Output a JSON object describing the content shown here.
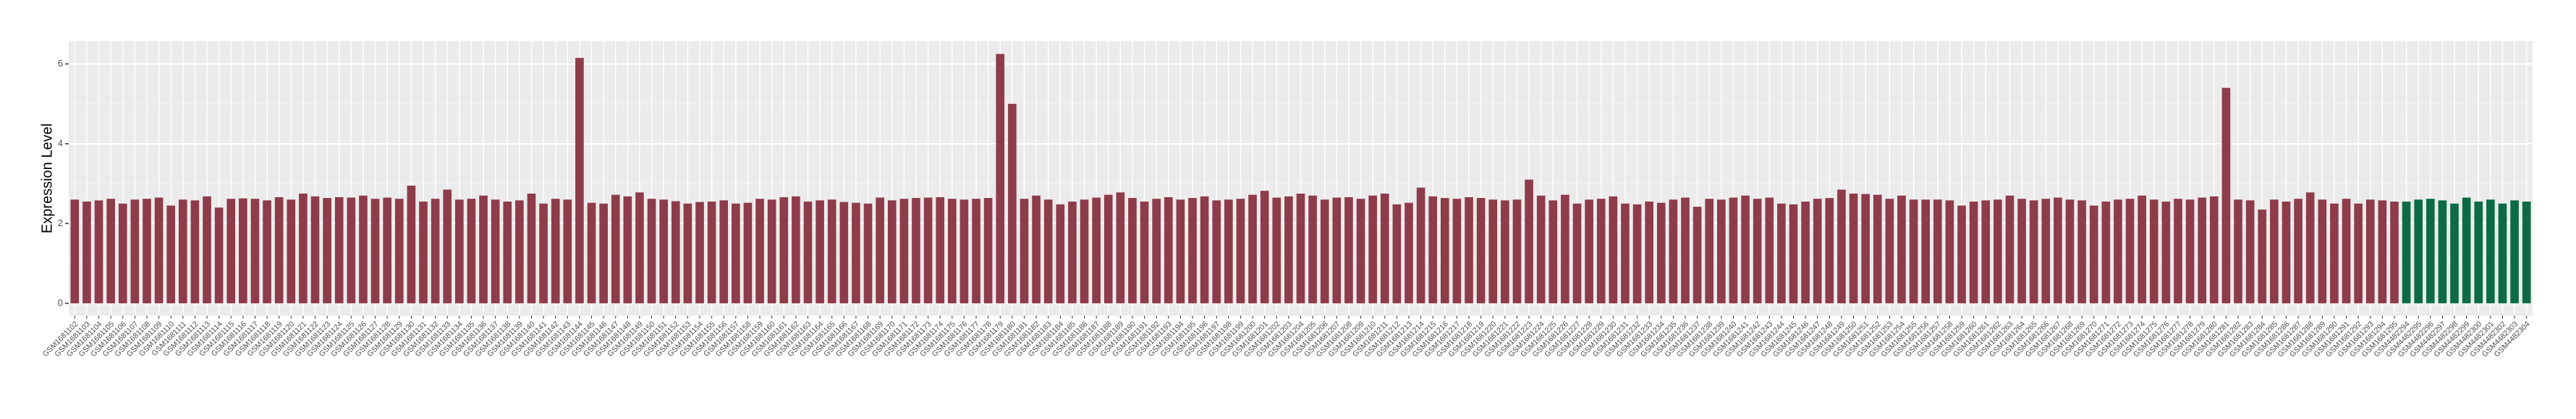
{
  "chart_data": {
    "type": "bar",
    "y_label": "Expression Level",
    "categories": [
      "GSM1681102",
      "GSM1681103",
      "GSM1681104",
      "GSM1681105",
      "GSM1681106",
      "GSM1681107",
      "GSM1681108",
      "GSM1681109",
      "GSM1681110",
      "GSM1681111",
      "GSM1681112",
      "GSM1681113",
      "GSM1681114",
      "GSM1681115",
      "GSM1681116",
      "GSM1681117",
      "GSM1681118",
      "GSM1681119",
      "GSM1681120",
      "GSM1681121",
      "GSM1681122",
      "GSM1681123",
      "GSM1681124",
      "GSM1681125",
      "GSM1681126",
      "GSM1681127",
      "GSM1681128",
      "GSM1681129",
      "GSM1681130",
      "GSM1681131",
      "GSM1681132",
      "GSM1681133",
      "GSM1681134",
      "GSM1681135",
      "GSM1681136",
      "GSM1681137",
      "GSM1681138",
      "GSM1681139",
      "GSM1681140",
      "GSM1681141",
      "GSM1681142",
      "GSM1681143",
      "GSM1681144",
      "GSM1681145",
      "GSM1681146",
      "GSM1681147",
      "GSM1681148",
      "GSM1681149",
      "GSM1681150",
      "GSM1681151",
      "GSM1681152",
      "GSM1681153",
      "GSM1681154",
      "GSM1681155",
      "GSM1681156",
      "GSM1681157",
      "GSM1681158",
      "GSM1681159",
      "GSM1681160",
      "GSM1681161",
      "GSM1681162",
      "GSM1681163",
      "GSM1681164",
      "GSM1681165",
      "GSM1681166",
      "GSM1681167",
      "GSM1681168",
      "GSM1681169",
      "GSM1681170",
      "GSM1681171",
      "GSM1681172",
      "GSM1681173",
      "GSM1681174",
      "GSM1681175",
      "GSM1681176",
      "GSM1681177",
      "GSM1681178",
      "GSM1681179",
      "GSM1681180",
      "GSM1681181",
      "GSM1681182",
      "GSM1681183",
      "GSM1681184",
      "GSM1681185",
      "GSM1681186",
      "GSM1681187",
      "GSM1681188",
      "GSM1681189",
      "GSM1681190",
      "GSM1681191",
      "GSM1681192",
      "GSM1681193",
      "GSM1681194",
      "GSM1681195",
      "GSM1681196",
      "GSM1681197",
      "GSM1681198",
      "GSM1681199",
      "GSM1681200",
      "GSM1681201",
      "GSM1681202",
      "GSM1681203",
      "GSM1681204",
      "GSM1681205",
      "GSM1681206",
      "GSM1681207",
      "GSM1681208",
      "GSM1681209",
      "GSM1681210",
      "GSM1681211",
      "GSM1681212",
      "GSM1681213",
      "GSM1681214",
      "GSM1681215",
      "GSM1681216",
      "GSM1681217",
      "GSM1681218",
      "GSM1681219",
      "GSM1681220",
      "GSM1681221",
      "GSM1681222",
      "GSM1681223",
      "GSM1681224",
      "GSM1681225",
      "GSM1681226",
      "GSM1681227",
      "GSM1681228",
      "GSM1681229",
      "GSM1681230",
      "GSM1681231",
      "GSM1681232",
      "GSM1681233",
      "GSM1681234",
      "GSM1681235",
      "GSM1681236",
      "GSM1681237",
      "GSM1681238",
      "GSM1681239",
      "GSM1681240",
      "GSM1681241",
      "GSM1681242",
      "GSM1681243",
      "GSM1681244",
      "GSM1681245",
      "GSM1681246",
      "GSM1681247",
      "GSM1681248",
      "GSM1681249",
      "GSM1681250",
      "GSM1681251",
      "GSM1681252",
      "GSM1681253",
      "GSM1681254",
      "GSM1681255",
      "GSM1681256",
      "GSM1681257",
      "GSM1681258",
      "GSM1681259",
      "GSM1681260",
      "GSM1681261",
      "GSM1681262",
      "GSM1681263",
      "GSM1681264",
      "GSM1681265",
      "GSM1681266",
      "GSM1681267",
      "GSM1681268",
      "GSM1681269",
      "GSM1681270",
      "GSM1681271",
      "GSM1681272",
      "GSM1681273",
      "GSM1681274",
      "GSM1681275",
      "GSM1681276",
      "GSM1681277",
      "GSM1681278",
      "GSM1681279",
      "GSM1681280",
      "GSM1681281",
      "GSM1681282",
      "GSM1681283",
      "GSM1681284",
      "GSM1681285",
      "GSM1681286",
      "GSM1681287",
      "GSM1681288",
      "GSM1681289",
      "GSM1681290",
      "GSM1681291",
      "GSM1681292",
      "GSM1681293",
      "GSM1681294",
      "GSM1681295",
      "GSM4482294",
      "GSM4482295",
      "GSM4482296",
      "GSM4482297",
      "GSM4482298",
      "GSM4482299",
      "GSM4482300",
      "GSM4482301",
      "GSM4482302",
      "GSM4482303",
      "GSM4482304"
    ],
    "values": [
      2.6,
      2.55,
      2.58,
      2.62,
      2.5,
      2.6,
      2.62,
      2.65,
      2.45,
      2.6,
      2.58,
      2.68,
      2.4,
      2.62,
      2.63,
      2.62,
      2.58,
      2.66,
      2.6,
      2.75,
      2.68,
      2.64,
      2.66,
      2.65,
      2.7,
      2.62,
      2.65,
      2.62,
      2.95,
      2.55,
      2.62,
      2.85,
      2.6,
      2.62,
      2.7,
      2.6,
      2.55,
      2.58,
      2.75,
      2.5,
      2.62,
      2.6,
      6.15,
      2.52,
      2.5,
      2.72,
      2.68,
      2.78,
      2.62,
      2.6,
      2.56,
      2.5,
      2.54,
      2.55,
      2.58,
      2.5,
      2.52,
      2.62,
      2.6,
      2.66,
      2.68,
      2.55,
      2.58,
      2.6,
      2.54,
      2.52,
      2.5,
      2.65,
      2.58,
      2.62,
      2.64,
      2.65,
      2.66,
      2.62,
      2.6,
      2.62,
      2.64,
      6.25,
      5.0,
      2.62,
      2.7,
      2.6,
      2.48,
      2.55,
      2.6,
      2.65,
      2.72,
      2.78,
      2.64,
      2.55,
      2.62,
      2.66,
      2.6,
      2.64,
      2.68,
      2.58,
      2.6,
      2.62,
      2.72,
      2.82,
      2.65,
      2.68,
      2.75,
      2.7,
      2.6,
      2.65,
      2.66,
      2.62,
      2.7,
      2.75,
      2.48,
      2.52,
      2.9,
      2.68,
      2.64,
      2.62,
      2.66,
      2.64,
      2.6,
      2.58,
      2.6,
      3.1,
      2.7,
      2.58,
      2.72,
      2.5,
      2.6,
      2.62,
      2.68,
      2.5,
      2.48,
      2.55,
      2.52,
      2.6,
      2.65,
      2.42,
      2.62,
      2.6,
      2.65,
      2.7,
      2.62,
      2.65,
      2.5,
      2.48,
      2.55,
      2.62,
      2.64,
      2.85,
      2.75,
      2.74,
      2.72,
      2.62,
      2.7,
      2.6,
      2.6,
      2.6,
      2.58,
      2.45,
      2.55,
      2.58,
      2.6,
      2.7,
      2.62,
      2.58,
      2.62,
      2.65,
      2.6,
      2.58,
      2.45,
      2.55,
      2.6,
      2.62,
      2.7,
      2.6,
      2.55,
      2.62,
      2.6,
      2.65,
      2.68,
      5.4,
      2.6,
      2.58,
      2.35,
      2.6,
      2.55,
      2.62,
      2.78,
      2.6,
      2.5,
      2.62,
      2.5,
      2.6,
      2.58,
      2.55,
      2.55,
      2.6,
      2.62,
      2.58,
      2.5,
      2.65,
      2.55,
      2.6,
      2.5,
      2.58,
      2.55
    ],
    "colors": [
      "#8e3b4a",
      "#8e3b4a",
      "#8e3b4a",
      "#8e3b4a",
      "#8e3b4a",
      "#8e3b4a",
      "#8e3b4a",
      "#8e3b4a",
      "#8e3b4a",
      "#8e3b4a",
      "#8e3b4a",
      "#8e3b4a",
      "#8e3b4a",
      "#8e3b4a",
      "#8e3b4a",
      "#8e3b4a",
      "#8e3b4a",
      "#8e3b4a",
      "#8e3b4a",
      "#8e3b4a",
      "#8e3b4a",
      "#8e3b4a",
      "#8e3b4a",
      "#8e3b4a",
      "#8e3b4a",
      "#8e3b4a",
      "#8e3b4a",
      "#8e3b4a",
      "#8e3b4a",
      "#8e3b4a",
      "#8e3b4a",
      "#8e3b4a",
      "#8e3b4a",
      "#8e3b4a",
      "#8e3b4a",
      "#8e3b4a",
      "#8e3b4a",
      "#8e3b4a",
      "#8e3b4a",
      "#8e3b4a",
      "#8e3b4a",
      "#8e3b4a",
      "#8e3b4a",
      "#8e3b4a",
      "#8e3b4a",
      "#8e3b4a",
      "#8e3b4a",
      "#8e3b4a",
      "#8e3b4a",
      "#8e3b4a",
      "#8e3b4a",
      "#8e3b4a",
      "#8e3b4a",
      "#8e3b4a",
      "#8e3b4a",
      "#8e3b4a",
      "#8e3b4a",
      "#8e3b4a",
      "#8e3b4a",
      "#8e3b4a",
      "#8e3b4a",
      "#8e3b4a",
      "#8e3b4a",
      "#8e3b4a",
      "#8e3b4a",
      "#8e3b4a",
      "#8e3b4a",
      "#8e3b4a",
      "#8e3b4a",
      "#8e3b4a",
      "#8e3b4a",
      "#8e3b4a",
      "#8e3b4a",
      "#8e3b4a",
      "#8e3b4a",
      "#8e3b4a",
      "#8e3b4a",
      "#8e3b4a",
      "#8e3b4a",
      "#8e3b4a",
      "#8e3b4a",
      "#8e3b4a",
      "#8e3b4a",
      "#8e3b4a",
      "#8e3b4a",
      "#8e3b4a",
      "#8e3b4a",
      "#8e3b4a",
      "#8e3b4a",
      "#8e3b4a",
      "#8e3b4a",
      "#8e3b4a",
      "#8e3b4a",
      "#8e3b4a",
      "#8e3b4a",
      "#8e3b4a",
      "#8e3b4a",
      "#8e3b4a",
      "#8e3b4a",
      "#8e3b4a",
      "#8e3b4a",
      "#8e3b4a",
      "#8e3b4a",
      "#8e3b4a",
      "#8e3b4a",
      "#8e3b4a",
      "#8e3b4a",
      "#8e3b4a",
      "#8e3b4a",
      "#8e3b4a",
      "#8e3b4a",
      "#8e3b4a",
      "#8e3b4a",
      "#8e3b4a",
      "#8e3b4a",
      "#8e3b4a",
      "#8e3b4a",
      "#8e3b4a",
      "#8e3b4a",
      "#8e3b4a",
      "#8e3b4a",
      "#8e3b4a",
      "#8e3b4a",
      "#8e3b4a",
      "#8e3b4a",
      "#8e3b4a",
      "#8e3b4a",
      "#8e3b4a",
      "#8e3b4a",
      "#8e3b4a",
      "#8e3b4a",
      "#8e3b4a",
      "#8e3b4a",
      "#8e3b4a",
      "#8e3b4a",
      "#8e3b4a",
      "#8e3b4a",
      "#8e3b4a",
      "#8e3b4a",
      "#8e3b4a",
      "#8e3b4a",
      "#8e3b4a",
      "#8e3b4a",
      "#8e3b4a",
      "#8e3b4a",
      "#8e3b4a",
      "#8e3b4a",
      "#8e3b4a",
      "#8e3b4a",
      "#8e3b4a",
      "#8e3b4a",
      "#8e3b4a",
      "#8e3b4a",
      "#8e3b4a",
      "#8e3b4a",
      "#8e3b4a",
      "#8e3b4a",
      "#8e3b4a",
      "#8e3b4a",
      "#8e3b4a",
      "#8e3b4a",
      "#8e3b4a",
      "#8e3b4a",
      "#8e3b4a",
      "#8e3b4a",
      "#8e3b4a",
      "#8e3b4a",
      "#8e3b4a",
      "#8e3b4a",
      "#8e3b4a",
      "#8e3b4a",
      "#8e3b4a",
      "#8e3b4a",
      "#8e3b4a",
      "#8e3b4a",
      "#8e3b4a",
      "#8e3b4a",
      "#8e3b4a",
      "#8e3b4a",
      "#8e3b4a",
      "#8e3b4a",
      "#8e3b4a",
      "#8e3b4a",
      "#8e3b4a",
      "#8e3b4a",
      "#8e3b4a",
      "#8e3b4a",
      "#8e3b4a",
      "#8e3b4a",
      "#8e3b4a",
      "#8e3b4a",
      "#8e3b4a",
      "#8e3b4a",
      "#8e3b4a",
      "#0c6b45",
      "#0c6b45",
      "#0c6b45",
      "#0c6b45",
      "#0c6b45",
      "#0c6b45",
      "#0c6b45",
      "#0c6b45",
      "#0c6b45",
      "#0c6b45",
      "#0c6b45"
    ],
    "ylim": [
      -0.31,
      6.57
    ],
    "yticks": [
      0,
      2,
      4,
      6
    ],
    "grid": true
  }
}
